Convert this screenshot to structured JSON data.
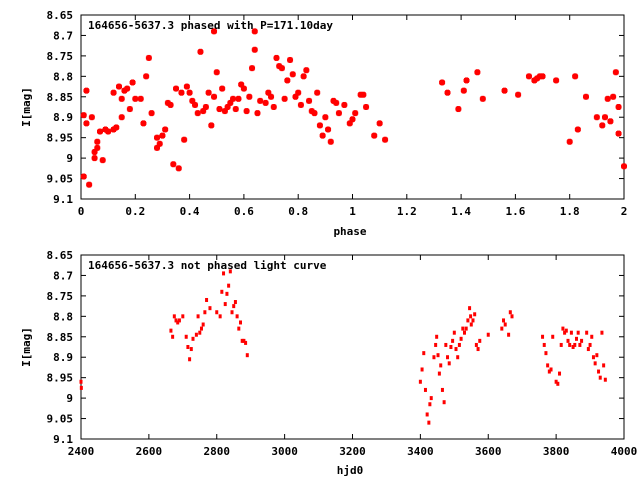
{
  "chart_data": [
    {
      "type": "scatter",
      "title": "164656-5637.3 phased with P=171.10day",
      "xlabel": "phase",
      "ylabel": "I[mag]",
      "xlim": [
        0,
        2
      ],
      "ylim": [
        8.65,
        9.1
      ],
      "y_inverted": true,
      "grid": false,
      "marker": "cross",
      "color": "#ff0000",
      "xticks": [
        "0",
        "0.2",
        "0.4",
        "0.6",
        "0.8",
        "1",
        "1.2",
        "1.4",
        "1.6",
        "1.8",
        "2"
      ],
      "yticks": [
        "8.65",
        "8.7",
        "8.75",
        "8.8",
        "8.85",
        "8.9",
        "8.95",
        "9",
        "9.05",
        "9.1"
      ],
      "series": [
        {
          "points": [
            [
              0.01,
              8.895
            ],
            [
              0.01,
              9.045
            ],
            [
              0.02,
              8.915
            ],
            [
              0.02,
              8.835
            ],
            [
              0.03,
              9.065
            ],
            [
              0.04,
              8.9
            ],
            [
              0.05,
              8.985
            ],
            [
              0.05,
              9.0
            ],
            [
              0.06,
              8.975
            ],
            [
              0.06,
              8.96
            ],
            [
              0.07,
              8.935
            ],
            [
              0.08,
              9.005
            ],
            [
              0.09,
              8.93
            ],
            [
              0.1,
              8.935
            ],
            [
              0.12,
              8.93
            ],
            [
              0.12,
              8.84
            ],
            [
              0.13,
              8.925
            ],
            [
              0.14,
              8.825
            ],
            [
              0.15,
              8.9
            ],
            [
              0.15,
              8.855
            ],
            [
              0.16,
              8.835
            ],
            [
              0.17,
              8.83
            ],
            [
              0.18,
              8.88
            ],
            [
              0.19,
              8.815
            ],
            [
              0.2,
              8.855
            ],
            [
              0.22,
              8.855
            ],
            [
              0.23,
              8.915
            ],
            [
              0.24,
              8.8
            ],
            [
              0.25,
              8.755
            ],
            [
              0.26,
              8.89
            ],
            [
              0.28,
              8.95
            ],
            [
              0.28,
              8.975
            ],
            [
              0.29,
              8.965
            ],
            [
              0.3,
              8.945
            ],
            [
              0.31,
              8.93
            ],
            [
              0.32,
              8.865
            ],
            [
              0.33,
              8.87
            ],
            [
              0.34,
              9.015
            ],
            [
              0.35,
              8.83
            ],
            [
              0.36,
              9.025
            ],
            [
              0.37,
              8.84
            ],
            [
              0.38,
              8.955
            ],
            [
              0.39,
              8.825
            ],
            [
              0.4,
              8.84
            ],
            [
              0.41,
              8.86
            ],
            [
              0.42,
              8.87
            ],
            [
              0.43,
              8.89
            ],
            [
              0.44,
              8.74
            ],
            [
              0.45,
              8.885
            ],
            [
              0.46,
              8.875
            ],
            [
              0.47,
              8.84
            ],
            [
              0.48,
              8.92
            ],
            [
              0.49,
              8.69
            ],
            [
              0.49,
              8.85
            ],
            [
              0.5,
              8.79
            ],
            [
              0.51,
              8.88
            ],
            [
              0.52,
              8.83
            ],
            [
              0.53,
              8.885
            ],
            [
              0.54,
              8.875
            ],
            [
              0.55,
              8.865
            ],
            [
              0.56,
              8.855
            ],
            [
              0.57,
              8.88
            ],
            [
              0.58,
              8.855
            ],
            [
              0.59,
              8.82
            ],
            [
              0.6,
              8.83
            ],
            [
              0.61,
              8.885
            ],
            [
              0.62,
              8.85
            ],
            [
              0.63,
              8.78
            ],
            [
              0.64,
              8.69
            ],
            [
              0.64,
              8.735
            ],
            [
              0.65,
              8.89
            ],
            [
              0.66,
              8.86
            ],
            [
              0.68,
              8.865
            ],
            [
              0.69,
              8.84
            ],
            [
              0.7,
              8.85
            ],
            [
              0.71,
              8.875
            ],
            [
              0.72,
              8.755
            ],
            [
              0.73,
              8.775
            ],
            [
              0.74,
              8.78
            ],
            [
              0.75,
              8.855
            ],
            [
              0.76,
              8.81
            ],
            [
              0.77,
              8.76
            ],
            [
              0.78,
              8.795
            ],
            [
              0.79,
              8.85
            ],
            [
              0.8,
              8.84
            ],
            [
              0.81,
              8.87
            ],
            [
              0.82,
              8.8
            ],
            [
              0.83,
              8.785
            ],
            [
              0.84,
              8.86
            ],
            [
              0.85,
              8.885
            ],
            [
              0.86,
              8.89
            ],
            [
              0.87,
              8.84
            ],
            [
              0.88,
              8.92
            ],
            [
              0.89,
              8.945
            ],
            [
              0.9,
              8.9
            ],
            [
              0.91,
              8.93
            ],
            [
              0.92,
              8.96
            ],
            [
              0.93,
              8.86
            ],
            [
              0.94,
              8.865
            ],
            [
              0.95,
              8.89
            ],
            [
              0.97,
              8.87
            ],
            [
              0.99,
              8.915
            ],
            [
              1.0,
              8.905
            ],
            [
              1.01,
              8.89
            ],
            [
              1.03,
              8.845
            ],
            [
              1.04,
              8.845
            ],
            [
              1.05,
              8.875
            ],
            [
              1.08,
              8.945
            ],
            [
              1.1,
              8.915
            ],
            [
              1.12,
              8.955
            ],
            [
              1.33,
              8.815
            ],
            [
              1.35,
              8.84
            ],
            [
              1.39,
              8.88
            ],
            [
              1.41,
              8.835
            ],
            [
              1.42,
              8.81
            ],
            [
              1.46,
              8.79
            ],
            [
              1.48,
              8.855
            ],
            [
              1.56,
              8.835
            ],
            [
              1.61,
              8.845
            ],
            [
              1.65,
              8.8
            ],
            [
              1.67,
              8.81
            ],
            [
              1.68,
              8.805
            ],
            [
              1.69,
              8.8
            ],
            [
              1.7,
              8.8
            ],
            [
              1.75,
              8.81
            ],
            [
              1.8,
              8.96
            ],
            [
              1.82,
              8.8
            ],
            [
              1.83,
              8.93
            ],
            [
              1.86,
              8.85
            ],
            [
              1.9,
              8.9
            ],
            [
              1.92,
              8.92
            ],
            [
              1.93,
              8.9
            ],
            [
              1.94,
              8.855
            ],
            [
              1.95,
              8.91
            ],
            [
              1.96,
              8.85
            ],
            [
              1.97,
              8.79
            ],
            [
              1.98,
              8.875
            ],
            [
              2.0,
              9.02
            ],
            [
              1.98,
              8.94
            ]
          ]
        }
      ]
    },
    {
      "type": "scatter",
      "title": "164656-5637.3 not phased light curve",
      "xlabel": "hjd0",
      "ylabel": "I[mag]",
      "xlim": [
        2400,
        4000
      ],
      "ylim": [
        8.65,
        9.1
      ],
      "y_inverted": true,
      "grid": false,
      "marker": "dot",
      "color": "#ff0000",
      "xticks": [
        "2400",
        "2600",
        "2800",
        "3000",
        "3200",
        "3400",
        "3600",
        "3800",
        "4000"
      ],
      "yticks": [
        "8.65",
        "8.7",
        "8.75",
        "8.8",
        "8.85",
        "8.9",
        "8.95",
        "9",
        "9.05",
        "9.1"
      ],
      "series": [
        {
          "points": [
            [
              2400,
              8.96
            ],
            [
              2401,
              8.975
            ],
            [
              2665,
              8.835
            ],
            [
              2670,
              8.85
            ],
            [
              2675,
              8.8
            ],
            [
              2680,
              8.81
            ],
            [
              2685,
              8.815
            ],
            [
              2690,
              8.81
            ],
            [
              2700,
              8.8
            ],
            [
              2710,
              8.85
            ],
            [
              2715,
              8.875
            ],
            [
              2720,
              8.905
            ],
            [
              2725,
              8.88
            ],
            [
              2730,
              8.855
            ],
            [
              2740,
              8.845
            ],
            [
              2745,
              8.8
            ],
            [
              2750,
              8.84
            ],
            [
              2755,
              8.83
            ],
            [
              2760,
              8.82
            ],
            [
              2765,
              8.79
            ],
            [
              2770,
              8.76
            ],
            [
              2780,
              8.78
            ],
            [
              2800,
              8.79
            ],
            [
              2810,
              8.8
            ],
            [
              2815,
              8.74
            ],
            [
              2820,
              8.695
            ],
            [
              2825,
              8.77
            ],
            [
              2830,
              8.745
            ],
            [
              2835,
              8.725
            ],
            [
              2840,
              8.69
            ],
            [
              2845,
              8.79
            ],
            [
              2850,
              8.775
            ],
            [
              2855,
              8.765
            ],
            [
              2860,
              8.8
            ],
            [
              2865,
              8.83
            ],
            [
              2870,
              8.815
            ],
            [
              2875,
              8.86
            ],
            [
              2880,
              8.86
            ],
            [
              2885,
              8.865
            ],
            [
              2890,
              8.895
            ],
            [
              3400,
              8.96
            ],
            [
              3405,
              8.93
            ],
            [
              3410,
              8.89
            ],
            [
              3415,
              8.98
            ],
            [
              3420,
              9.04
            ],
            [
              3425,
              9.06
            ],
            [
              3428,
              9.015
            ],
            [
              3432,
              9.0
            ],
            [
              3440,
              8.9
            ],
            [
              3445,
              8.87
            ],
            [
              3448,
              8.85
            ],
            [
              3452,
              8.895
            ],
            [
              3456,
              8.94
            ],
            [
              3460,
              8.92
            ],
            [
              3465,
              8.98
            ],
            [
              3470,
              9.01
            ],
            [
              3475,
              8.87
            ],
            [
              3480,
              8.9
            ],
            [
              3485,
              8.915
            ],
            [
              3490,
              8.875
            ],
            [
              3495,
              8.86
            ],
            [
              3500,
              8.84
            ],
            [
              3505,
              8.88
            ],
            [
              3510,
              8.9
            ],
            [
              3515,
              8.87
            ],
            [
              3520,
              8.855
            ],
            [
              3525,
              8.83
            ],
            [
              3530,
              8.84
            ],
            [
              3535,
              8.83
            ],
            [
              3540,
              8.81
            ],
            [
              3545,
              8.78
            ],
            [
              3548,
              8.8
            ],
            [
              3550,
              8.82
            ],
            [
              3555,
              8.81
            ],
            [
              3560,
              8.795
            ],
            [
              3565,
              8.87
            ],
            [
              3570,
              8.88
            ],
            [
              3575,
              8.86
            ],
            [
              3600,
              8.845
            ],
            [
              3640,
              8.83
            ],
            [
              3645,
              8.81
            ],
            [
              3650,
              8.82
            ],
            [
              3660,
              8.845
            ],
            [
              3665,
              8.79
            ],
            [
              3670,
              8.8
            ],
            [
              3760,
              8.85
            ],
            [
              3765,
              8.87
            ],
            [
              3770,
              8.89
            ],
            [
              3775,
              8.92
            ],
            [
              3780,
              8.935
            ],
            [
              3785,
              8.93
            ],
            [
              3790,
              8.85
            ],
            [
              3800,
              8.96
            ],
            [
              3805,
              8.965
            ],
            [
              3810,
              8.94
            ],
            [
              3815,
              8.87
            ],
            [
              3820,
              8.83
            ],
            [
              3825,
              8.84
            ],
            [
              3830,
              8.835
            ],
            [
              3835,
              8.86
            ],
            [
              3840,
              8.87
            ],
            [
              3845,
              8.84
            ],
            [
              3850,
              8.875
            ],
            [
              3855,
              8.87
            ],
            [
              3860,
              8.855
            ],
            [
              3865,
              8.84
            ],
            [
              3870,
              8.87
            ],
            [
              3875,
              8.86
            ],
            [
              3890,
              8.84
            ],
            [
              3895,
              8.88
            ],
            [
              3900,
              8.87
            ],
            [
              3905,
              8.85
            ],
            [
              3910,
              8.9
            ],
            [
              3915,
              8.915
            ],
            [
              3920,
              8.895
            ],
            [
              3925,
              8.935
            ],
            [
              3930,
              8.95
            ],
            [
              3935,
              8.84
            ],
            [
              3940,
              8.92
            ],
            [
              3945,
              8.955
            ]
          ]
        }
      ]
    }
  ]
}
